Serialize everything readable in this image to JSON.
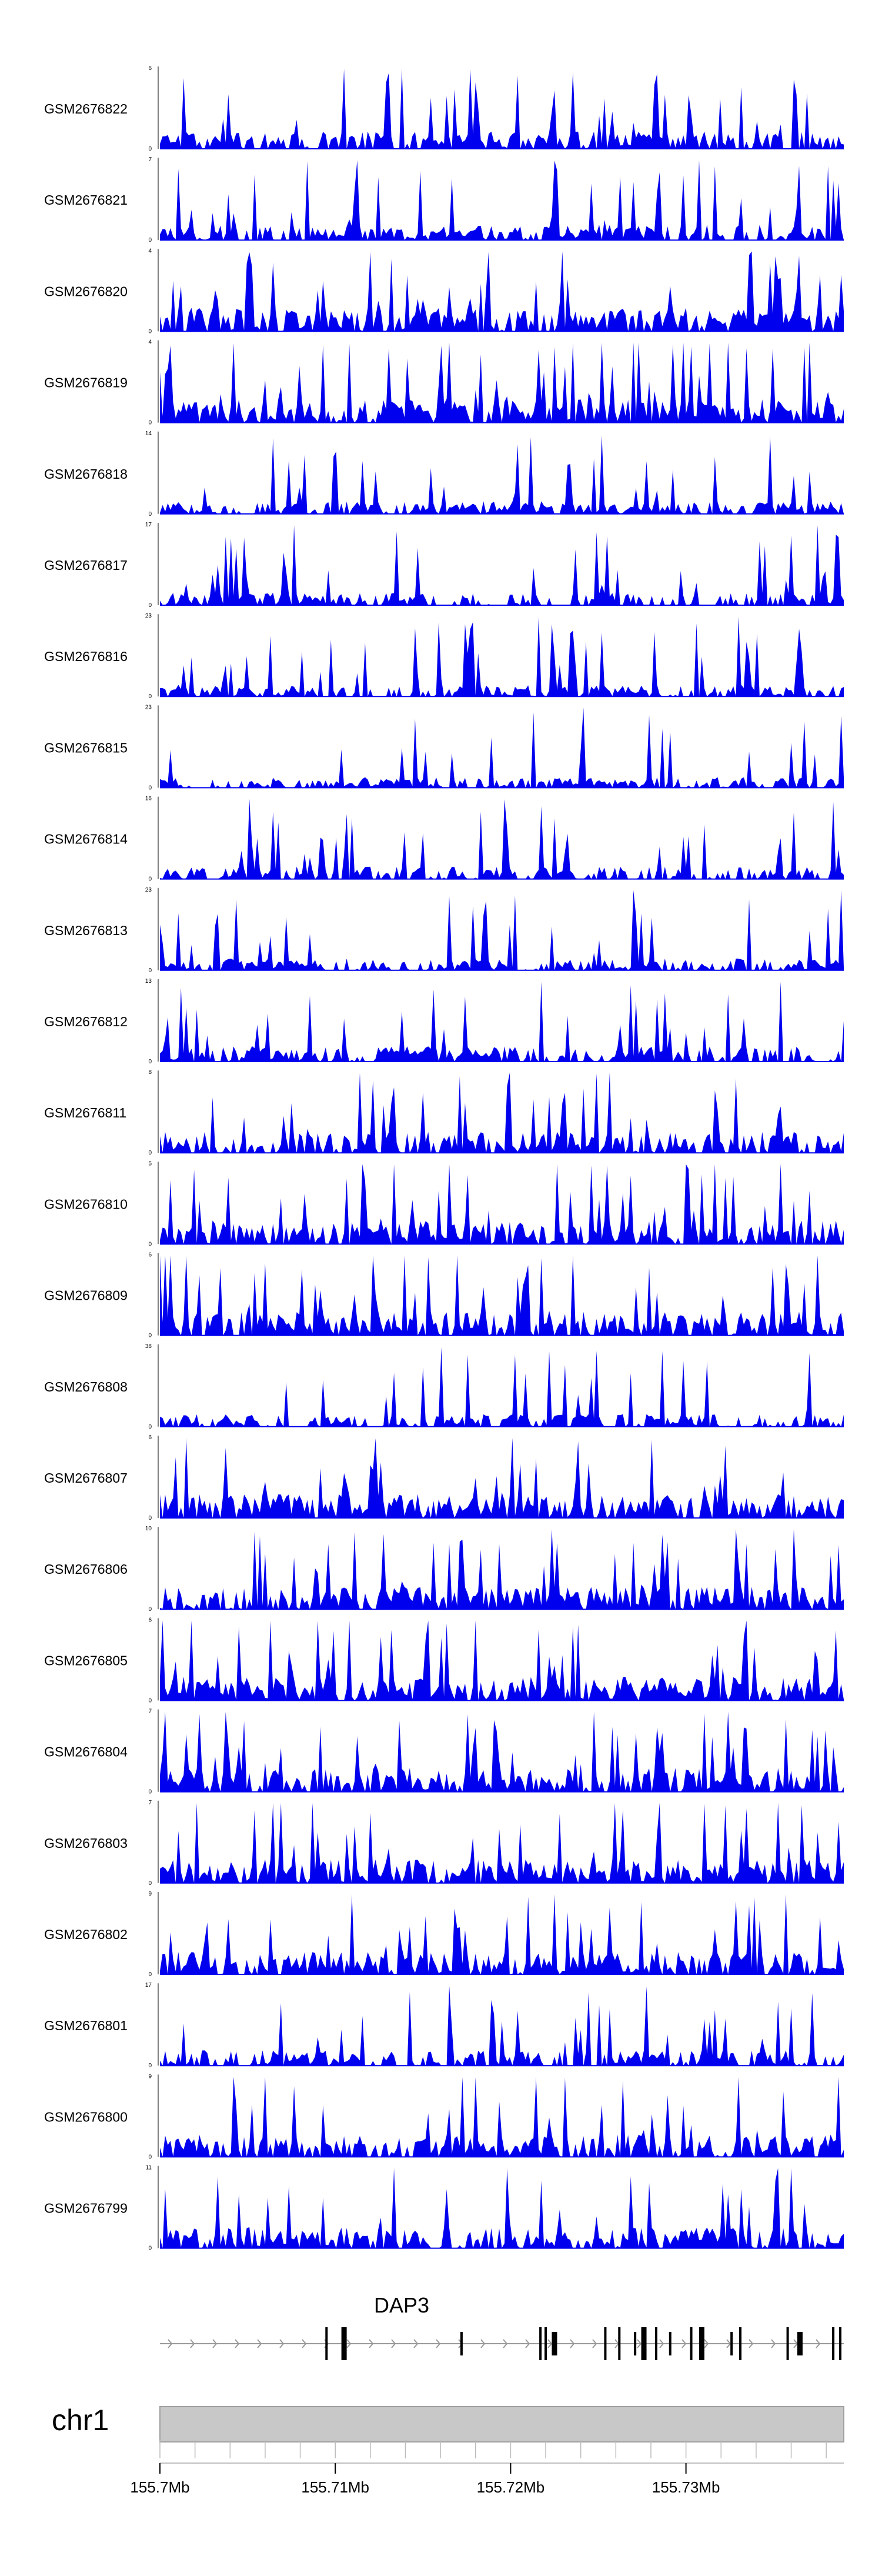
{
  "chart_data": {
    "type": "area",
    "title": "",
    "fill_color": "#0000ee",
    "x_range_mb": [
      155.7,
      155.739
    ],
    "tracks": [
      {
        "name": "GSM2676822",
        "ymax": 6,
        "seed": 11,
        "density": 0.62
      },
      {
        "name": "GSM2676821",
        "ymax": 7,
        "seed": 23,
        "density": 0.55
      },
      {
        "name": "GSM2676820",
        "ymax": 4,
        "seed": 37,
        "density": 0.85
      },
      {
        "name": "GSM2676819",
        "ymax": 4,
        "seed": 41,
        "density": 0.85
      },
      {
        "name": "GSM2676818",
        "ymax": 14,
        "seed": 53,
        "density": 0.45
      },
      {
        "name": "GSM2676817",
        "ymax": 17,
        "seed": 67,
        "density": 0.45
      },
      {
        "name": "GSM2676816",
        "ymax": 23,
        "seed": 71,
        "density": 0.42
      },
      {
        "name": "GSM2676815",
        "ymax": 23,
        "seed": 83,
        "density": 0.38
      },
      {
        "name": "GSM2676814",
        "ymax": 16,
        "seed": 97,
        "density": 0.45
      },
      {
        "name": "GSM2676813",
        "ymax": 23,
        "seed": 101,
        "density": 0.42
      },
      {
        "name": "GSM2676812",
        "ymax": 13,
        "seed": 113,
        "density": 0.55
      },
      {
        "name": "GSM2676811",
        "ymax": 8,
        "seed": 127,
        "density": 0.75
      },
      {
        "name": "GSM2676810",
        "ymax": 5,
        "seed": 131,
        "density": 0.85
      },
      {
        "name": "GSM2676809",
        "ymax": 6,
        "seed": 139,
        "density": 0.85
      },
      {
        "name": "GSM2676808",
        "ymax": 38,
        "seed": 149,
        "density": 0.45
      },
      {
        "name": "GSM2676807",
        "ymax": 6,
        "seed": 151,
        "density": 0.85
      },
      {
        "name": "GSM2676806",
        "ymax": 10,
        "seed": 163,
        "density": 0.8
      },
      {
        "name": "GSM2676805",
        "ymax": 6,
        "seed": 173,
        "density": 0.85
      },
      {
        "name": "GSM2676804",
        "ymax": 7,
        "seed": 181,
        "density": 0.85
      },
      {
        "name": "GSM2676803",
        "ymax": 7,
        "seed": 191,
        "density": 0.85
      },
      {
        "name": "GSM2676802",
        "ymax": 9,
        "seed": 197,
        "density": 0.8
      },
      {
        "name": "GSM2676801",
        "ymax": 17,
        "seed": 199,
        "density": 0.55
      },
      {
        "name": "GSM2676800",
        "ymax": 9,
        "seed": 211,
        "density": 0.8
      },
      {
        "name": "GSM2676799",
        "ymax": 11,
        "seed": 223,
        "density": 0.75
      }
    ],
    "gene": {
      "name": "DAP3",
      "strand": "+",
      "start_mb": 155.7,
      "end_mb": 155.739,
      "exons_mb": [
        155.7095,
        155.7105,
        155.7172,
        155.7217,
        155.722,
        155.7225,
        155.7254,
        155.7262,
        155.7271,
        155.7276,
        155.7283,
        155.7291,
        155.7303,
        155.7309,
        155.7326,
        155.7331,
        155.7358,
        155.7365,
        155.7384,
        155.7388
      ]
    },
    "chromosome": "chr1",
    "x_ticks_mb": [
      "155.7Mb",
      "155.71Mb",
      "155.72Mb",
      "155.73Mb"
    ],
    "x_tick_values": [
      155.7,
      155.71,
      155.72,
      155.73
    ]
  }
}
